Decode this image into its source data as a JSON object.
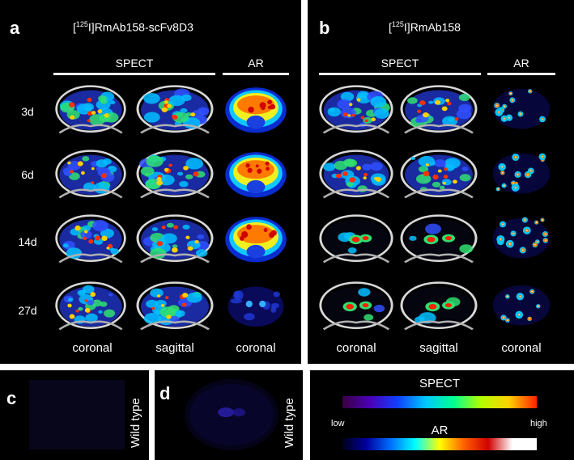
{
  "panels": {
    "a": {
      "label": "a",
      "title_prefix": "[",
      "title_sup": "125",
      "title_suffix": "I]RmAb158-scFv8D3",
      "spect_header": "SPECT",
      "ar_header": "AR",
      "columns": [
        "coronal",
        "sagittal",
        "coronal"
      ]
    },
    "b": {
      "label": "b",
      "title_prefix": "[",
      "title_sup": "125",
      "title_suffix": "I]RmAb158",
      "spect_header": "SPECT",
      "ar_header": "AR",
      "columns": [
        "coronal",
        "sagittal",
        "coronal"
      ]
    },
    "c": {
      "label": "c",
      "side_label": "Wild type"
    },
    "d": {
      "label": "d",
      "side_label": "Wild type"
    }
  },
  "timepoints": [
    "3d",
    "6d",
    "14d",
    "27d"
  ],
  "legend": {
    "spect_label": "SPECT",
    "ar_label": "AR",
    "low_label": "low",
    "high_label": "high",
    "spect_colors": [
      "#3a0040",
      "#4b00b8",
      "#1040ff",
      "#00c8ff",
      "#00ff90",
      "#b4ff00",
      "#ffd000",
      "#ff2000"
    ],
    "ar_colors": [
      "#000018",
      "#0000a0",
      "#0070ff",
      "#00ffff",
      "#ffff00",
      "#ff6000",
      "#d00000",
      "#ffffff",
      "#ffffff"
    ]
  }
}
